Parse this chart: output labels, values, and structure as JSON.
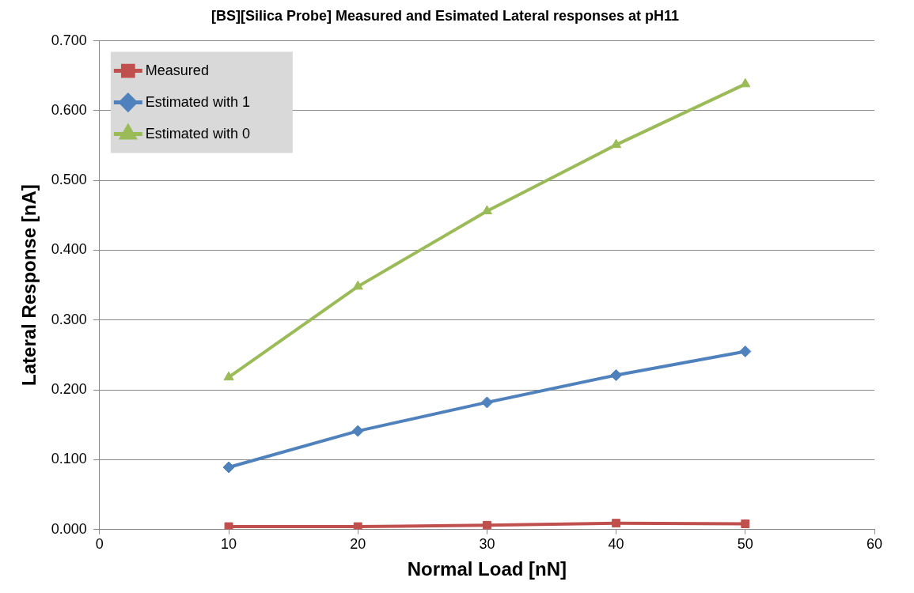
{
  "chart_data": {
    "type": "line",
    "title": "[BS][Silica Probe] Measured and Esimated Lateral responses at pH11",
    "xlabel": "Normal Load [nN]",
    "ylabel": "Lateral Response [nA]",
    "x": [
      10,
      20,
      30,
      40,
      50
    ],
    "series": [
      {
        "name": "Measured",
        "color": "#c0504d",
        "marker": "square",
        "values": [
          0.004,
          0.004,
          0.006,
          0.009,
          0.008
        ]
      },
      {
        "name": "Estimated with 1",
        "color": "#4f81bd",
        "marker": "diamond",
        "values": [
          0.089,
          0.141,
          0.182,
          0.221,
          0.255
        ]
      },
      {
        "name": "Estimated with 0",
        "color": "#9bbb59",
        "marker": "triangle",
        "values": [
          0.218,
          0.348,
          0.456,
          0.551,
          0.638
        ]
      }
    ],
    "xlim": [
      0,
      60
    ],
    "xticks": [
      0,
      10,
      20,
      30,
      40,
      50,
      60
    ],
    "ylim": [
      0,
      0.7
    ],
    "yticks": [
      {
        "value": 0,
        "label": "0.000"
      },
      {
        "value": 0.1,
        "label": "0.100"
      },
      {
        "value": 0.2,
        "label": "0.200"
      },
      {
        "value": 0.3,
        "label": "0.300"
      },
      {
        "value": 0.4,
        "label": "0.400"
      },
      {
        "value": 0.5,
        "label": "0.500"
      },
      {
        "value": 0.6,
        "label": "0.600"
      },
      {
        "value": 0.7,
        "label": "0.700"
      }
    ],
    "grid": "y",
    "legend": "top left",
    "line_style": "solid"
  }
}
